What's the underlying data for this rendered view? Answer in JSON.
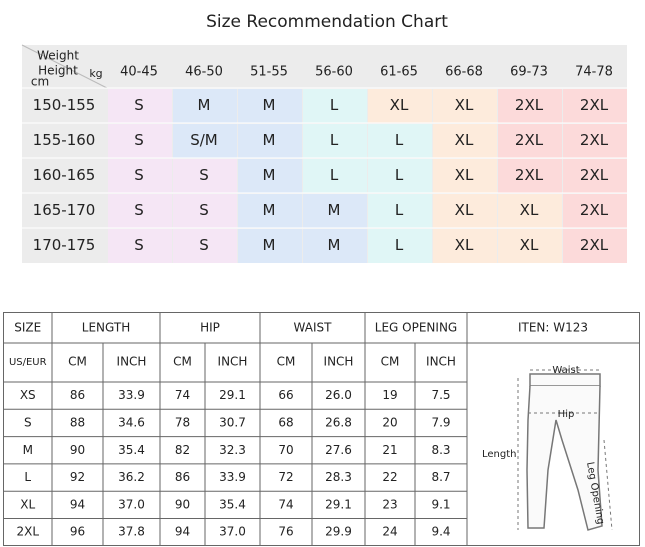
{
  "title": "Size Recommendation Chart",
  "recommendation": {
    "corner": {
      "weight": "Weight",
      "height": "Height",
      "cm": "cm",
      "kg": "kg"
    },
    "weights": [
      "40-45",
      "46-50",
      "51-55",
      "56-60",
      "61-65",
      "66-68",
      "69-73",
      "74-78"
    ],
    "rows": [
      {
        "height": "150-155",
        "sizes": [
          "S",
          "M",
          "M",
          "L",
          "XL",
          "XL",
          "2XL",
          "2XL"
        ],
        "colors": [
          "#f5e6f5",
          "#dce8f8",
          "#dce8f8",
          "#e0f6f6",
          "#fdebdc",
          "#fdebdc",
          "#fcdada",
          "#fcdada"
        ]
      },
      {
        "height": "155-160",
        "sizes": [
          "S",
          "S/M",
          "M",
          "L",
          "L",
          "XL",
          "2XL",
          "2XL"
        ],
        "colors": [
          "#f5e6f5",
          "#dce8f8",
          "#dce8f8",
          "#e0f6f6",
          "#e0f6f6",
          "#fdebdc",
          "#fcdada",
          "#fcdada"
        ]
      },
      {
        "height": "160-165",
        "sizes": [
          "S",
          "S",
          "M",
          "L",
          "L",
          "XL",
          "2XL",
          "2XL"
        ],
        "colors": [
          "#f5e6f5",
          "#f5e6f5",
          "#dce8f8",
          "#e0f6f6",
          "#e0f6f6",
          "#fdebdc",
          "#fcdada",
          "#fcdada"
        ]
      },
      {
        "height": "165-170",
        "sizes": [
          "S",
          "S",
          "M",
          "M",
          "L",
          "XL",
          "XL",
          "2XL"
        ],
        "colors": [
          "#f5e6f5",
          "#f5e6f5",
          "#dce8f8",
          "#dce8f8",
          "#e0f6f6",
          "#fdebdc",
          "#fdebdc",
          "#fcdada"
        ]
      },
      {
        "height": "170-175",
        "sizes": [
          "S",
          "S",
          "M",
          "M",
          "L",
          "XL",
          "XL",
          "2XL"
        ],
        "colors": [
          "#f5e6f5",
          "#f5e6f5",
          "#dce8f8",
          "#dce8f8",
          "#e0f6f6",
          "#fdebdc",
          "#fdebdc",
          "#fcdada"
        ]
      }
    ]
  },
  "size_table": {
    "headers": [
      "SIZE",
      "LENGTH",
      "HIP",
      "WAIST",
      "LEG OPENING"
    ],
    "item": "ITEN: W123",
    "subheaders": [
      "US/EUR",
      "CM",
      "INCH",
      "CM",
      "INCH",
      "CM",
      "INCH",
      "CM",
      "INCH"
    ],
    "rows": [
      [
        "XS",
        "86",
        "33.9",
        "74",
        "29.1",
        "66",
        "26.0",
        "19",
        "7.5"
      ],
      [
        "S",
        "88",
        "34.6",
        "78",
        "30.7",
        "68",
        "26.8",
        "20",
        "7.9"
      ],
      [
        "M",
        "90",
        "35.4",
        "82",
        "32.3",
        "70",
        "27.6",
        "21",
        "8.3"
      ],
      [
        "L",
        "92",
        "36.2",
        "86",
        "33.9",
        "72",
        "28.3",
        "22",
        "8.7"
      ],
      [
        "XL",
        "94",
        "37.0",
        "90",
        "35.4",
        "74",
        "29.1",
        "23",
        "9.1"
      ],
      [
        "2XL",
        "96",
        "37.8",
        "94",
        "37.0",
        "76",
        "29.9",
        "24",
        "9.4"
      ]
    ]
  },
  "diagram": {
    "waist": "Waist",
    "hip": "Hip",
    "length": "Length",
    "leg_opening": "Leg Opening"
  }
}
